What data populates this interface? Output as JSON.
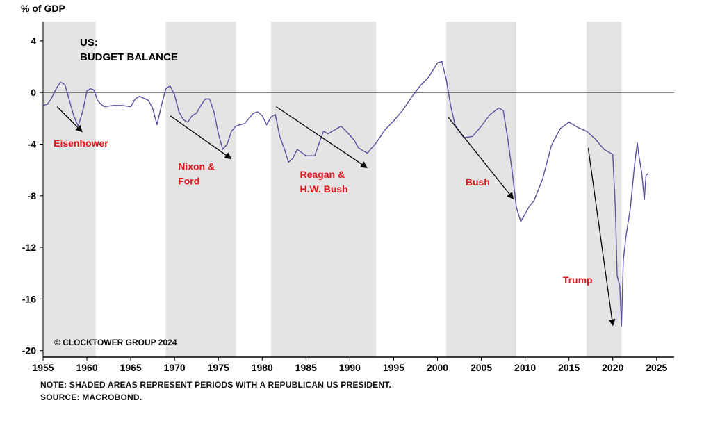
{
  "chart_data": {
    "type": "line",
    "title": "US:",
    "subtitle": "BUDGET BALANCE",
    "ylabel": "% of GDP",
    "xlabel": "",
    "xlim": [
      1955,
      2027
    ],
    "ylim": [
      -20.5,
      5.5
    ],
    "x_ticks": [
      1955,
      1960,
      1965,
      1970,
      1975,
      1980,
      1985,
      1990,
      1995,
      2000,
      2005,
      2010,
      2015,
      2020,
      2025
    ],
    "y_ticks": [
      4,
      0,
      -4,
      -8,
      -12,
      -16,
      -20
    ],
    "zero_line": 0,
    "grid": false,
    "line_color": "#5b4f9e",
    "shade_color": "#e4e4e4",
    "annotation_color": "#e0161b",
    "shaded_periods": [
      [
        1953,
        1961
      ],
      [
        1969,
        1977
      ],
      [
        1981,
        1993
      ],
      [
        2001,
        2009
      ],
      [
        2017,
        2021
      ]
    ],
    "series": [
      {
        "name": "",
        "x": [
          1955.0,
          1955.5,
          1956.0,
          1956.5,
          1957.0,
          1957.5,
          1958.0,
          1958.5,
          1959.0,
          1959.5,
          1960.0,
          1960.4,
          1960.8,
          1961.2,
          1961.6,
          1962.0,
          1963.0,
          1964.0,
          1965.0,
          1965.5,
          1966.0,
          1967.0,
          1967.5,
          1968.0,
          1968.5,
          1969.0,
          1969.5,
          1970.0,
          1970.5,
          1971.0,
          1971.5,
          1972.0,
          1972.5,
          1973.0,
          1973.5,
          1974.0,
          1974.5,
          1975.0,
          1975.5,
          1976.0,
          1976.5,
          1977.0,
          1977.5,
          1978.0,
          1978.5,
          1979.0,
          1979.5,
          1980.0,
          1980.5,
          1981.0,
          1981.5,
          1982.0,
          1982.5,
          1983.0,
          1983.5,
          1984.0,
          1985.0,
          1986.0,
          1986.5,
          1987.0,
          1987.5,
          1988.0,
          1989.0,
          1990.0,
          1990.5,
          1991.0,
          1991.5,
          1992.0,
          1993.0,
          1994.0,
          1995.0,
          1996.0,
          1997.0,
          1998.0,
          1999.0,
          2000.0,
          2000.5,
          2001.0,
          2001.5,
          2002.0,
          2003.0,
          2004.0,
          2005.0,
          2006.0,
          2007.0,
          2007.5,
          2008.0,
          2008.5,
          2009.0,
          2009.5,
          2010.0,
          2010.5,
          2011.0,
          2012.0,
          2013.0,
          2014.0,
          2015.0,
          2016.0,
          2017.0,
          2018.0,
          2019.0,
          2020.0,
          2020.3,
          2020.5,
          2020.8,
          2021.0,
          2021.2,
          2021.5,
          2022.0,
          2022.5,
          2022.8,
          2023.0,
          2023.3,
          2023.6,
          2023.8,
          2024.0
        ],
        "y": [
          -1.0,
          -0.9,
          -0.4,
          0.3,
          0.8,
          0.6,
          -0.6,
          -1.8,
          -2.6,
          -1.5,
          0.1,
          0.3,
          0.2,
          -0.6,
          -0.9,
          -1.1,
          -1.0,
          -1.0,
          -1.1,
          -0.5,
          -0.3,
          -0.6,
          -1.2,
          -2.5,
          -1.0,
          0.3,
          0.5,
          -0.2,
          -1.5,
          -2.1,
          -2.3,
          -1.8,
          -1.6,
          -1.0,
          -0.5,
          -0.5,
          -1.5,
          -3.2,
          -4.4,
          -4.0,
          -3.0,
          -2.6,
          -2.5,
          -2.4,
          -2.0,
          -1.6,
          -1.5,
          -1.8,
          -2.5,
          -1.9,
          -1.7,
          -3.4,
          -4.3,
          -5.4,
          -5.1,
          -4.4,
          -4.9,
          -4.9,
          -3.9,
          -3.0,
          -3.2,
          -3.0,
          -2.6,
          -3.3,
          -3.7,
          -4.3,
          -4.5,
          -4.7,
          -3.9,
          -2.9,
          -2.2,
          -1.4,
          -0.4,
          0.5,
          1.2,
          2.3,
          2.4,
          1.0,
          -1.0,
          -2.5,
          -3.5,
          -3.4,
          -2.6,
          -1.7,
          -1.2,
          -1.4,
          -3.5,
          -6.0,
          -8.9,
          -10.0,
          -9.4,
          -8.8,
          -8.4,
          -6.7,
          -4.1,
          -2.8,
          -2.3,
          -2.7,
          -3.0,
          -3.6,
          -4.4,
          -4.8,
          -9.0,
          -14.2,
          -15.0,
          -18.1,
          -13.0,
          -11.2,
          -9.0,
          -5.5,
          -3.9,
          -5.0,
          -6.2,
          -8.3,
          -6.4,
          -6.3
        ]
      }
    ],
    "annotations": [
      {
        "text": "Eisenhower",
        "x": 1956.2,
        "y": -4.2,
        "arrow": [
          1956.6,
          -1.1,
          1959.4,
          -3.0
        ]
      },
      {
        "text": "Nixon & Ford",
        "x": 1970.4,
        "y": -6.0,
        "arrow": [
          1969.5,
          -1.8,
          1976.4,
          -5.1
        ]
      },
      {
        "text": "Reagan & H.W. Bush",
        "x": 1984.3,
        "y": -6.6,
        "arrow": [
          1981.6,
          -1.1,
          1991.9,
          -5.8
        ]
      },
      {
        "text": "Bush",
        "x": 2003.2,
        "y": -7.2,
        "arrow": [
          2001.2,
          -1.9,
          2008.6,
          -8.2
        ]
      },
      {
        "text": "Trump",
        "x": 2014.3,
        "y": -14.8,
        "arrow": [
          2017.2,
          -4.3,
          2020.0,
          -18.0
        ]
      }
    ],
    "watermark": "© CLOCKTOWER GROUP 2024"
  },
  "footer": {
    "note": "NOTE: SHADED AREAS REPRESENT PERIODS WITH A REPUBLICAN US PRESIDENT.",
    "source": "SOURCE: MACROBOND."
  }
}
